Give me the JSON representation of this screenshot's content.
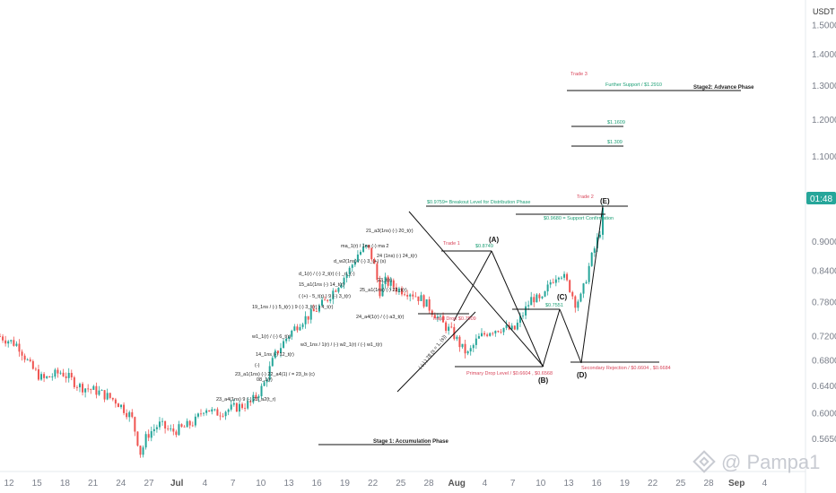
{
  "currency": "USDT",
  "watermark": "@ Pampa1",
  "price_tag": "01:48",
  "colors": {
    "up": "#26a69a",
    "down": "#ef5350",
    "lines": "#111111",
    "green_text": "#1a9e74",
    "red_text": "#d8455a",
    "tag_bg": "#26a69a"
  },
  "chart_data": {
    "type": "candlestick",
    "title": "",
    "xlabel": "",
    "ylabel": "",
    "x_ticks": [
      "12",
      "15",
      "18",
      "21",
      "24",
      "27",
      "Jul",
      "4",
      "7",
      "10",
      "13",
      "16",
      "19",
      "22",
      "25",
      "28",
      "Aug",
      "4",
      "7",
      "10",
      "13",
      "16",
      "19",
      "22",
      "25",
      "28",
      "Sep",
      "4"
    ],
    "y_ticks": [
      "1.5000",
      "1.4000",
      "1.3000",
      "1.2000",
      "1.1000",
      "0.9000",
      "0.8400",
      "0.7800",
      "0.7200",
      "0.6800",
      "0.6400",
      "0.6000",
      "0.5650"
    ],
    "ylim": [
      0.53,
      1.56
    ],
    "scale": "log",
    "grid": false,
    "price_path": [
      {
        "x": 0,
        "y": 0.72
      },
      {
        "x": 3,
        "y": 0.705
      },
      {
        "x": 5,
        "y": 0.67
      },
      {
        "x": 7,
        "y": 0.65
      },
      {
        "x": 10,
        "y": 0.662
      },
      {
        "x": 13,
        "y": 0.64
      },
      {
        "x": 16,
        "y": 0.632
      },
      {
        "x": 19,
        "y": 0.618
      },
      {
        "x": 21.5,
        "y": 0.595
      },
      {
        "x": 23,
        "y": 0.545
      },
      {
        "x": 24,
        "y": 0.57
      },
      {
        "x": 26,
        "y": 0.585
      },
      {
        "x": 28,
        "y": 0.575
      },
      {
        "x": 30,
        "y": 0.58
      },
      {
        "x": 32,
        "y": 0.59
      },
      {
        "x": 33.5,
        "y": 0.61
      },
      {
        "x": 35,
        "y": 0.6
      },
      {
        "x": 37,
        "y": 0.605
      },
      {
        "x": 39,
        "y": 0.61
      },
      {
        "x": 41,
        "y": 0.615
      },
      {
        "x": 43,
        "y": 0.64
      },
      {
        "x": 45,
        "y": 0.69
      },
      {
        "x": 47,
        "y": 0.72
      },
      {
        "x": 49,
        "y": 0.745
      },
      {
        "x": 51,
        "y": 0.76
      },
      {
        "x": 53,
        "y": 0.78
      },
      {
        "x": 55,
        "y": 0.81
      },
      {
        "x": 57,
        "y": 0.84
      },
      {
        "x": 58.5,
        "y": 0.875
      },
      {
        "x": 60,
        "y": 0.89
      },
      {
        "x": 61,
        "y": 0.86
      },
      {
        "x": 62,
        "y": 0.8
      },
      {
        "x": 63,
        "y": 0.82
      },
      {
        "x": 65,
        "y": 0.805
      },
      {
        "x": 67,
        "y": 0.8
      },
      {
        "x": 69,
        "y": 0.785
      },
      {
        "x": 71,
        "y": 0.76
      },
      {
        "x": 72.5,
        "y": 0.74
      },
      {
        "x": 74,
        "y": 0.725
      },
      {
        "x": 75.5,
        "y": 0.7
      },
      {
        "x": 76.5,
        "y": 0.69
      },
      {
        "x": 78,
        "y": 0.715
      },
      {
        "x": 80,
        "y": 0.73
      },
      {
        "x": 82,
        "y": 0.735
      },
      {
        "x": 84,
        "y": 0.73
      },
      {
        "x": 85.5,
        "y": 0.76
      },
      {
        "x": 87,
        "y": 0.79
      },
      {
        "x": 88.5,
        "y": 0.78
      },
      {
        "x": 90,
        "y": 0.82
      },
      {
        "x": 91.5,
        "y": 0.84
      },
      {
        "x": 93,
        "y": 0.81
      },
      {
        "x": 94,
        "y": 0.78
      },
      {
        "x": 95,
        "y": 0.79
      },
      {
        "x": 96.5,
        "y": 0.86
      },
      {
        "x": 98,
        "y": 0.92
      },
      {
        "x": 98.5,
        "y": 0.965
      }
    ],
    "annotations": {
      "stage1": "Stage 1: Accumulation Phase",
      "stage2": "Stage2: Advance Phase",
      "trade1": "Trade 1",
      "trade2": "Trade 2",
      "trade3": "Trade 3",
      "breakout": "$0.9759= Breakout Level for Distribution Phase",
      "support_confirm": "$0.9680 = Support Confirmation",
      "further_support": "Further Support / $1.2910",
      "level_1": "$1.1609",
      "level_2": "$1.309",
      "price_a": "$0.8749",
      "price_c": "$0.7551",
      "initial_drop": "Initial Drop $0.7509",
      "primary_drop": "Primary Drop Level / $0.6604 , $0.6568",
      "secondary_rejection": "Secondary Rejection / $0.6604 , $0.6684",
      "wave_a": "(A)",
      "wave_b": "(B)",
      "wave_c": "(C)",
      "wave_d": "(D)",
      "wave_e": "(E)",
      "equation": "( (-) ) 78 (s = 1, (s))",
      "wave_label_1": "21_a3(1ns) (-) 20_t(r)",
      "wave_label_2": "ma_1(r) / 1ns (-) ma 2",
      "wave_label_3": "d_w2(1ns) / (-) 3_(+) (s)",
      "wave_label_4": "24 (1ns) (-) 24_t(r)",
      "wave_label_5": "d_1(r) / (-) 2_t(r) (-) _n_(-)",
      "wave_label_6": "15_a1(1ns (-) 14_t(r)",
      "wave_label_7": "( (+) - 5_t(r) ) 9 (-) 3_t(r)",
      "wave_label_8": "19_1ns / (-) 5_t(r) ) 9 (-) 3_t(r) ) 4_t(r)",
      "wave_label_9": "23_t(r)",
      "wave_label_10": "25_a1(1ns) (-) 23_t(r)",
      "wave_label_11": "24_a4(1(r) / (-) a3_t(r)",
      "wave_label_12": "w1_1(r) / (-) 6_t(r)",
      "wave_label_13": "w3_1ns / 1(r) / (-) w2_1(r) / (-) w1_t(r)",
      "wave_label_14": "14_1ns (-) 12_t(r)",
      "wave_label_15": "23_a1(1ns) (-) 22_a4(1) / = 23_ls (c)",
      "wave_label_16": "08_1(r)",
      "wave_label_17": "23_a4(1ns) 9 (-) 23_a2(t_r)",
      "wave_label_18": "(-)"
    }
  }
}
